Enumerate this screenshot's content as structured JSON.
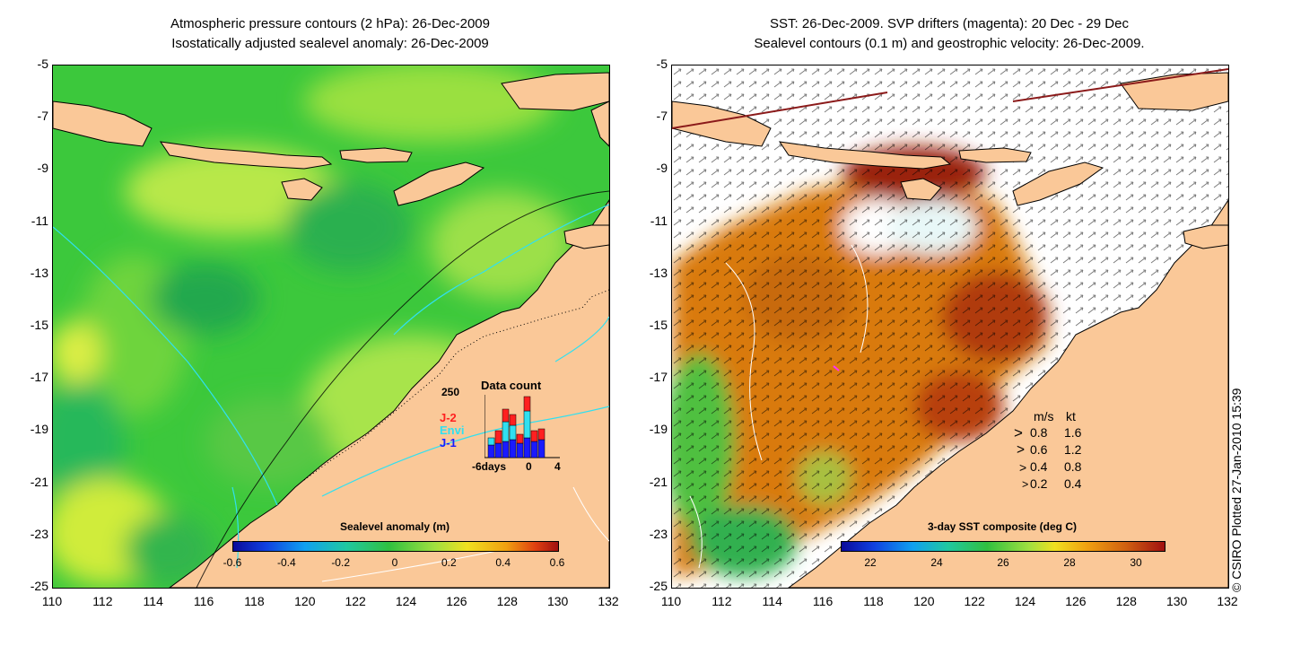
{
  "left_panel": {
    "title_line1": "Atmospheric pressure contours (2 hPa): 26-Dec-2009",
    "title_line2": "Isostatically adjusted sealevel anomaly: 26-Dec-2009",
    "colorbar_label": "Sealevel anomaly (m)",
    "colorbar_ticks": [
      "-0.6",
      "-0.4",
      "-0.2",
      "0",
      "0.2",
      "0.4",
      "0.6"
    ],
    "data_count": {
      "title": "Data count",
      "max_label": "250",
      "series": [
        {
          "name": "J-2",
          "color": "#ff2020"
        },
        {
          "name": "Envi",
          "color": "#30e0f0"
        },
        {
          "name": "J-1",
          "color": "#1a1aff"
        }
      ],
      "axis_labels": [
        "-6days",
        "0",
        "4"
      ]
    }
  },
  "right_panel": {
    "title_line1": "SST: 26-Dec-2009. SVP drifters (magenta): 20 Dec - 29 Dec",
    "title_line2": "Sealevel contours (0.1 m) and geostrophic velocity: 26-Dec-2009.",
    "colorbar_label": "3-day SST composite (deg C)",
    "colorbar_ticks": [
      "22",
      "24",
      "26",
      "28",
      "30"
    ],
    "velocity_legend": {
      "header_ms": "m/s",
      "header_kt": "kt",
      "rows": [
        {
          "ms": "0.8",
          "kt": "1.6"
        },
        {
          "ms": "0.6",
          "kt": "1.2"
        },
        {
          "ms": "0.4",
          "kt": "0.8"
        },
        {
          "ms": "0.2",
          "kt": "0.4"
        }
      ]
    }
  },
  "y_ticks": [
    "-5",
    "-7",
    "-9",
    "-11",
    "-13",
    "-15",
    "-17",
    "-19",
    "-21",
    "-23",
    "-25"
  ],
  "x_ticks": [
    "110",
    "112",
    "114",
    "116",
    "118",
    "120",
    "122",
    "124",
    "126",
    "128",
    "130",
    "132"
  ],
  "credit": "© CSIRO Plotted 27-Jan-2010 15:39",
  "colors": {
    "land": "#fac898",
    "ocean_green": "#3cc83c",
    "sst_orange": "#d97a10",
    "sst_red": "#9a2208"
  }
}
